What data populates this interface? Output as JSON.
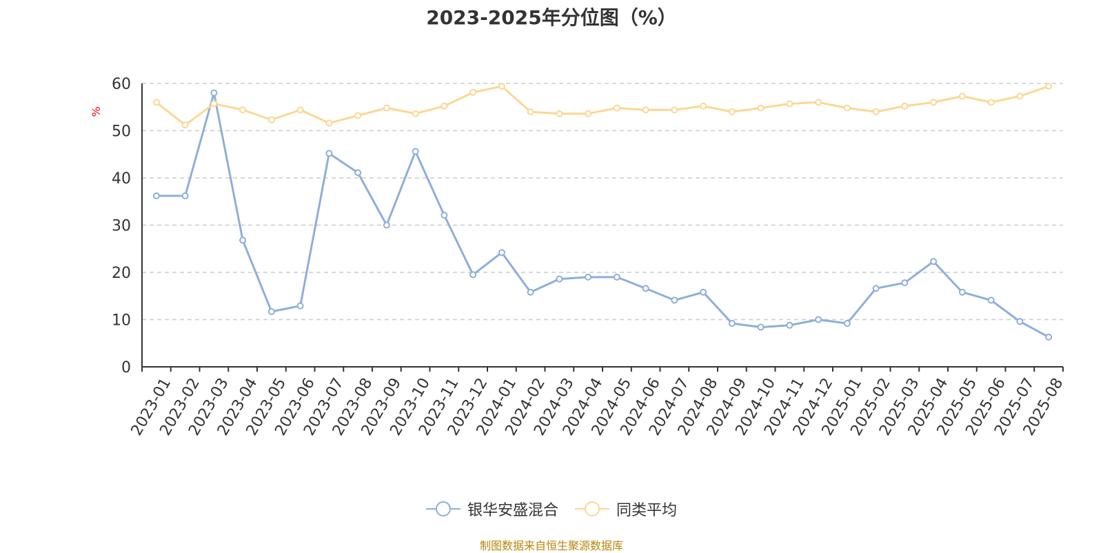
{
  "chart_data": {
    "type": "line",
    "title": "2023-2025年分位图（%）",
    "ylabel": "%",
    "xlabel": "",
    "ylim": [
      0,
      60
    ],
    "yticks": [
      0,
      10,
      20,
      30,
      40,
      50,
      60
    ],
    "grid": true,
    "legend_position": "bottom-center",
    "categories": [
      "2023-01",
      "2023-02",
      "2023-03",
      "2023-04",
      "2023-05",
      "2023-06",
      "2023-07",
      "2023-08",
      "2023-09",
      "2023-10",
      "2023-11",
      "2023-12",
      "2024-01",
      "2024-02",
      "2024-03",
      "2024-04",
      "2024-05",
      "2024-06",
      "2024-07",
      "2024-08",
      "2024-09",
      "2024-10",
      "2024-11",
      "2024-12",
      "2025-01",
      "2025-02",
      "2025-03",
      "2025-04",
      "2025-05",
      "2025-06",
      "2025-07",
      "2025-08"
    ],
    "series": [
      {
        "name": "银华安盛混合",
        "color": "#8eaedb",
        "values": [
          36.2,
          36.2,
          58.0,
          26.8,
          11.7,
          12.9,
          45.2,
          41.1,
          30.0,
          45.6,
          32.1,
          19.5,
          24.2,
          15.8,
          18.6,
          19.0,
          19.0,
          16.6,
          14.1,
          15.8,
          9.2,
          8.4,
          8.8,
          10.0,
          9.2,
          16.6,
          17.8,
          22.3,
          15.8,
          14.1,
          9.6,
          6.3
        ]
      },
      {
        "name": "同类平均",
        "color": "#fcd793",
        "values": [
          56.0,
          51.2,
          55.7,
          54.4,
          52.3,
          54.4,
          51.6,
          53.2,
          54.8,
          53.6,
          55.2,
          58.1,
          59.4,
          54.0,
          53.6,
          53.6,
          54.8,
          54.4,
          54.4,
          55.2,
          54.0,
          54.8,
          55.7,
          56.0,
          54.8,
          54.0,
          55.2,
          56.0,
          57.3,
          56.0,
          57.3,
          59.4
        ]
      }
    ]
  },
  "footer": {
    "source": "制图数据来自恒生聚源数据库"
  }
}
